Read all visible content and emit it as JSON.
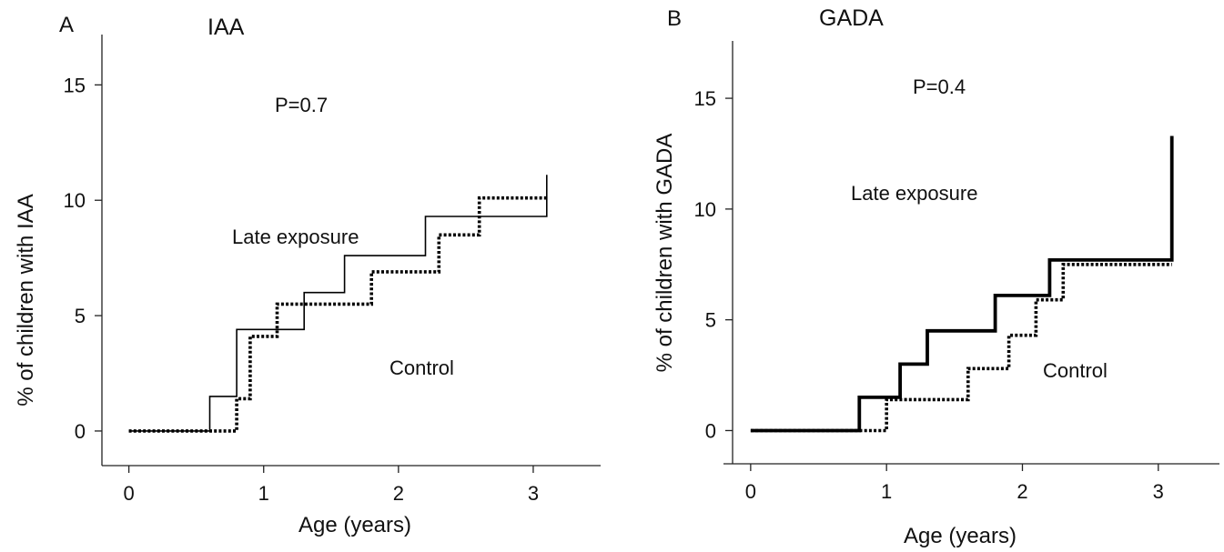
{
  "chart_data": [
    {
      "panel": "A",
      "title": "IAA",
      "type": "line",
      "step": true,
      "xlabel": "Age (years)",
      "ylabel": "% of children with IAA",
      "xlim": [
        -0.2,
        3.5
      ],
      "ylim": [
        -1.5,
        17.3
      ],
      "xticks": [
        0,
        1,
        2,
        3
      ],
      "yticks": [
        0,
        5,
        10,
        15
      ],
      "annotations": {
        "pvalue": "P=0.7",
        "late": "Late exposure",
        "control": "Control"
      },
      "series": [
        {
          "name": "Late exposure",
          "style": "solid-thin",
          "x": [
            0,
            0.6,
            0.8,
            1.3,
            1.6,
            2.2,
            2.6,
            3.1,
            3.1
          ],
          "y": [
            0,
            1.5,
            4.4,
            6.0,
            7.6,
            9.3,
            9.3,
            9.3,
            11.1
          ]
        },
        {
          "name": "Control",
          "style": "dotted-thick",
          "x": [
            0,
            0.8,
            0.9,
            1.1,
            1.8,
            2.3,
            2.6,
            3.1
          ],
          "y": [
            0,
            1.4,
            4.1,
            5.5,
            6.9,
            8.5,
            10.1,
            10.1
          ]
        }
      ]
    },
    {
      "panel": "B",
      "title": "GADA",
      "type": "line",
      "step": true,
      "xlabel": "Age (years)",
      "ylabel": "% of children with GADA",
      "xlim": [
        -0.2,
        3.45
      ],
      "ylim": [
        -1.5,
        18.0
      ],
      "xticks": [
        0,
        1,
        2,
        3
      ],
      "yticks": [
        0,
        5,
        10,
        15
      ],
      "annotations": {
        "pvalue": "P=0.4",
        "late": "Late exposure",
        "control": "Control"
      },
      "series": [
        {
          "name": "Late exposure",
          "style": "solid-thick",
          "x": [
            0,
            0.8,
            1.1,
            1.3,
            1.8,
            2.2,
            3.1,
            3.1
          ],
          "y": [
            0,
            1.5,
            3.0,
            4.5,
            6.1,
            7.7,
            7.7,
            13.3
          ]
        },
        {
          "name": "Control",
          "style": "dotted-thick",
          "x": [
            0,
            1.0,
            1.6,
            1.9,
            2.1,
            2.3,
            3.1
          ],
          "y": [
            0,
            1.4,
            2.8,
            4.3,
            5.9,
            7.5,
            7.5
          ]
        }
      ]
    }
  ]
}
